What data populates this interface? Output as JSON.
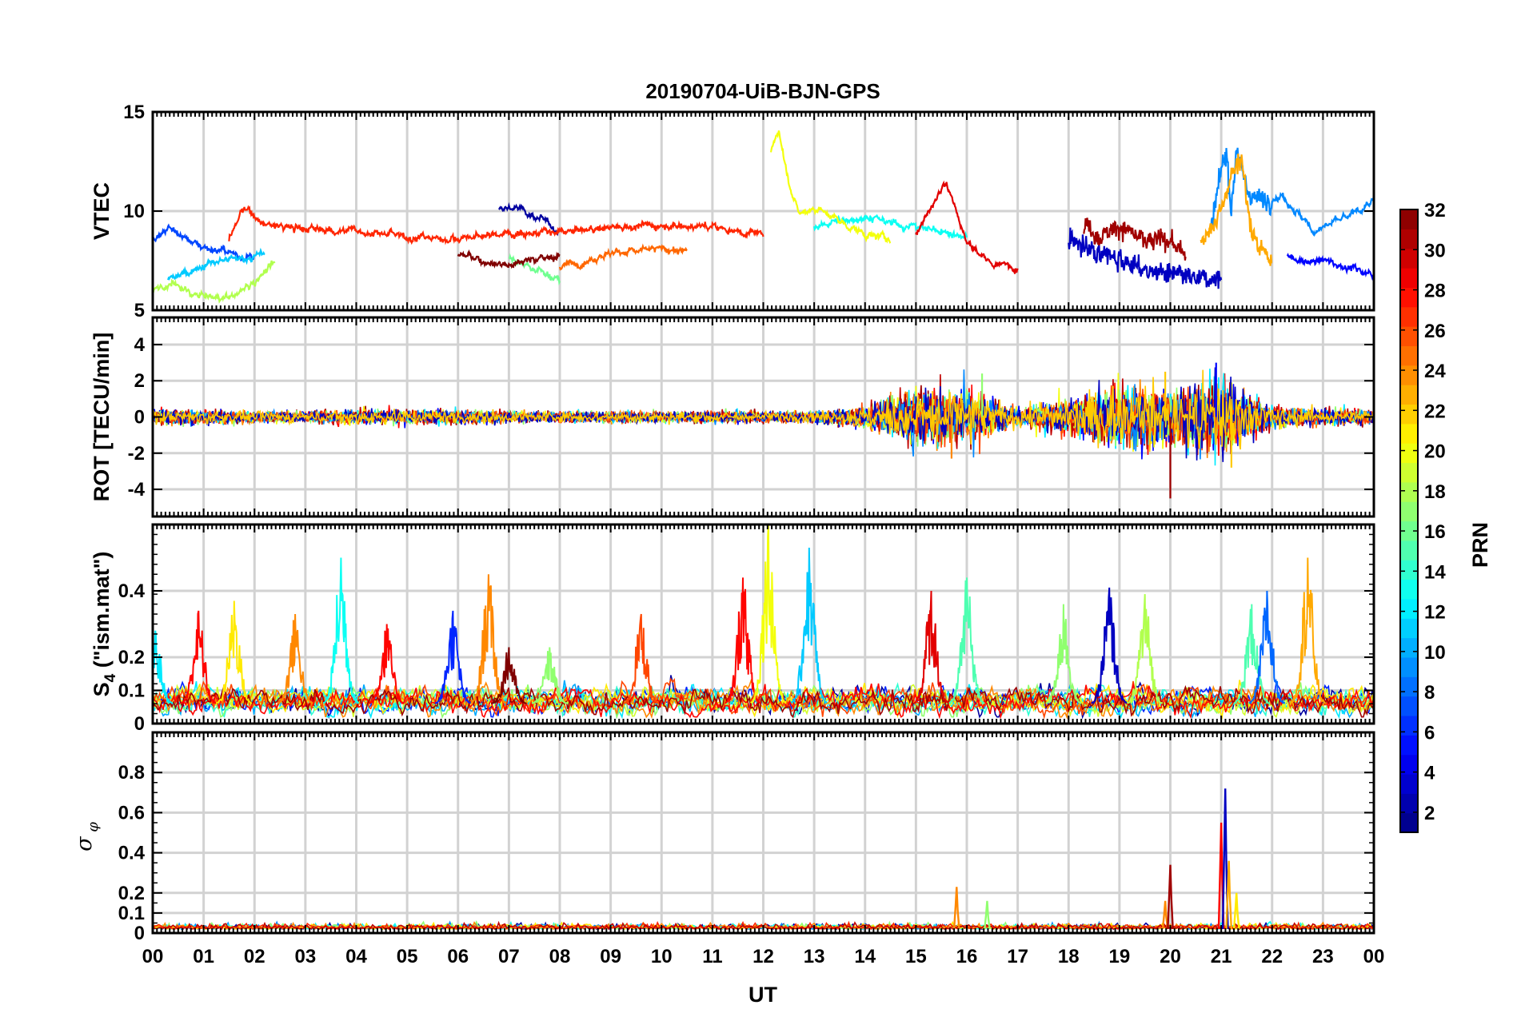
{
  "figure": {
    "title": "20190704-UiB-BJN-GPS",
    "xlabel": "UT",
    "x_tick_labels": [
      "00",
      "01",
      "02",
      "03",
      "04",
      "05",
      "06",
      "07",
      "08",
      "09",
      "10",
      "11",
      "12",
      "13",
      "14",
      "15",
      "16",
      "17",
      "18",
      "19",
      "20",
      "21",
      "22",
      "23",
      "00"
    ]
  },
  "panels": [
    {
      "ylabel": "VTEC",
      "ylim": [
        5,
        15
      ],
      "yticks": [
        5,
        10,
        15
      ],
      "ytick_labels": [
        "5",
        "10",
        "15"
      ],
      "minor_ticks": false
    },
    {
      "ylabel": "ROT [TECU/min]",
      "ylim": [
        -5.5,
        5.5
      ],
      "yticks": [
        -4,
        -2,
        0,
        2,
        4
      ],
      "ytick_labels": [
        "-4",
        "-2",
        "0",
        "2",
        "4"
      ],
      "minor_ticks": false
    },
    {
      "ylabel_main": "S",
      "ylabel_sub": "4",
      "ylabel_rest": " (\"ism.mat\")",
      "ylim": [
        0,
        0.6
      ],
      "yticks": [
        0,
        0.1,
        0.2,
        0.4
      ],
      "ytick_labels": [
        "0",
        "0.1",
        "0.2",
        "0.4"
      ],
      "minor_ticks": true
    },
    {
      "ylabel_main": "σ",
      "ylabel_sub": "φ",
      "ylim": [
        0,
        1
      ],
      "yticks": [
        0,
        0.1,
        0.2,
        0.4,
        0.6,
        0.8
      ],
      "ytick_labels": [
        "0",
        "0.1",
        "0.2",
        "0.4",
        "0.6",
        "0.8"
      ],
      "minor_ticks": true
    }
  ],
  "colorbar": {
    "label": "PRN",
    "range": [
      1,
      32
    ],
    "ticks": [
      2,
      4,
      6,
      8,
      10,
      12,
      14,
      16,
      18,
      20,
      22,
      24,
      26,
      28,
      30,
      32
    ],
    "tick_labels": [
      "2",
      "4",
      "6",
      "8",
      "10",
      "12",
      "14",
      "16",
      "18",
      "20",
      "22",
      "24",
      "26",
      "28",
      "30",
      "32"
    ],
    "colormap": "jet"
  },
  "chart_data": [
    {
      "type": "line",
      "title": "20190704-UiB-BJN-GPS",
      "xlabel": "UT",
      "ylabel": "VTEC",
      "xlim": [
        0,
        24
      ],
      "ylim": [
        5,
        15
      ],
      "grid": true,
      "note_color_key": "PRN (jet colormap 1-32)",
      "series": [
        {
          "prn": 2,
          "x": [
            6.8,
            7.0,
            7.2,
            7.4,
            7.6,
            7.8,
            8.0
          ],
          "y": [
            10.0,
            10.2,
            10.1,
            9.9,
            9.6,
            9.3,
            9.0
          ]
        },
        {
          "prn": 3,
          "x": [
            18.0,
            18.5,
            19.0,
            19.5,
            20.0,
            20.5,
            21.0
          ],
          "y": [
            8.6,
            8.0,
            7.6,
            7.0,
            6.8,
            6.5,
            6.6
          ]
        },
        {
          "prn": 5,
          "x": [
            22.3,
            22.6,
            23.0,
            23.5,
            24.0
          ],
          "y": [
            7.8,
            7.4,
            7.5,
            7.2,
            6.8
          ]
        },
        {
          "prn": 7,
          "x": [
            0.0,
            0.3,
            0.6,
            1.0,
            1.5,
            2.0
          ],
          "y": [
            8.6,
            9.2,
            8.7,
            8.2,
            7.9,
            7.6
          ]
        },
        {
          "prn": 9,
          "x": [
            20.8,
            21.0,
            21.1,
            21.2,
            21.3,
            21.5,
            21.8,
            22.2,
            22.8,
            23.5,
            24.0
          ],
          "y": [
            9.0,
            12.0,
            13.0,
            10.0,
            13.3,
            11.0,
            10.5,
            10.8,
            9.0,
            9.7,
            10.5
          ]
        },
        {
          "prn": 11,
          "x": [
            0.3,
            0.7,
            1.2,
            1.7,
            2.2
          ],
          "y": [
            6.5,
            7.0,
            7.4,
            7.6,
            7.8
          ]
        },
        {
          "prn": 13,
          "x": [
            13.0,
            13.5,
            14.0,
            14.5,
            15.0,
            15.5,
            16.0
          ],
          "y": [
            9.2,
            9.5,
            9.7,
            9.4,
            9.2,
            9.0,
            8.7
          ]
        },
        {
          "prn": 16,
          "x": [
            7.0,
            7.4,
            7.8,
            8.0
          ],
          "y": [
            7.5,
            7.2,
            6.8,
            6.4
          ]
        },
        {
          "prn": 18,
          "x": [
            0.0,
            0.4,
            0.8,
            1.2,
            1.6,
            2.0,
            2.4
          ],
          "y": [
            6.0,
            6.3,
            5.8,
            5.6,
            5.7,
            6.5,
            7.3
          ]
        },
        {
          "prn": 20,
          "x": [
            12.15,
            12.3,
            12.5,
            12.7,
            13.0,
            13.5,
            14.0,
            14.5
          ],
          "y": [
            13.0,
            14.2,
            11.5,
            9.8,
            10.2,
            9.5,
            8.8,
            8.6
          ]
        },
        {
          "prn": 23,
          "x": [
            20.6,
            20.9,
            21.2,
            21.4,
            21.5,
            21.6,
            21.8,
            22.0
          ],
          "y": [
            8.5,
            9.5,
            11.8,
            12.8,
            10.5,
            9.0,
            8.0,
            7.5
          ]
        },
        {
          "prn": 25,
          "x": [
            8.0,
            8.5,
            9.0,
            9.5,
            10.0,
            10.5
          ],
          "y": [
            7.2,
            7.5,
            7.9,
            8.0,
            8.1,
            8.0
          ]
        },
        {
          "prn": 27,
          "x": [
            1.5,
            1.8,
            2.2,
            3.0,
            4.0,
            5.0,
            6.0,
            7.0,
            8.0,
            9.0,
            10.0,
            11.0,
            12.0
          ],
          "y": [
            8.6,
            10.2,
            9.3,
            9.1,
            9.0,
            8.7,
            8.6,
            8.9,
            8.9,
            9.2,
            9.3,
            9.2,
            8.8
          ]
        },
        {
          "prn": 29,
          "x": [
            15.0,
            15.3,
            15.6,
            15.8,
            16.0,
            16.5,
            17.0
          ],
          "y": [
            9.0,
            10.2,
            11.6,
            10.0,
            8.4,
            7.3,
            7.2
          ]
        },
        {
          "prn": 31,
          "x": [
            18.3,
            18.6,
            19.0,
            19.5,
            20.0,
            20.3
          ],
          "y": [
            9.4,
            8.7,
            9.3,
            8.4,
            8.6,
            7.6
          ]
        },
        {
          "prn": 32,
          "x": [
            6.0,
            6.5,
            7.0,
            7.5,
            8.0
          ],
          "y": [
            7.8,
            7.5,
            7.3,
            7.6,
            7.7
          ]
        }
      ]
    },
    {
      "type": "line",
      "xlabel": "UT",
      "ylabel": "ROT [TECU/min]",
      "xlim": [
        0,
        24
      ],
      "ylim": [
        -5.5,
        5.5
      ],
      "grid": true,
      "envelope": {
        "x": [
          0,
          1,
          2,
          3,
          4,
          5,
          6,
          7,
          8,
          9,
          10,
          11,
          12,
          13,
          14,
          15,
          16,
          17,
          18,
          19,
          20,
          21,
          22,
          23,
          24
        ],
        "abs_amplitude": [
          0.4,
          0.4,
          0.3,
          0.3,
          0.4,
          0.4,
          0.4,
          0.3,
          0.3,
          0.3,
          0.3,
          0.3,
          0.3,
          0.3,
          0.6,
          1.5,
          1.6,
          0.5,
          1.0,
          1.8,
          1.4,
          2.2,
          0.6,
          0.4,
          0.4
        ]
      },
      "peaks": [
        {
          "x": 15.7,
          "y": -2.3,
          "prn": 24
        },
        {
          "x": 16.3,
          "y": 2.4,
          "prn": 17
        },
        {
          "x": 20.0,
          "y": -4.5,
          "prn": 31
        },
        {
          "x": 20.9,
          "y": 3.0,
          "prn": 5
        },
        {
          "x": 21.2,
          "y": -2.8,
          "prn": 22
        },
        {
          "x": 19.9,
          "y": 2.5,
          "prn": 22
        }
      ]
    },
    {
      "type": "line",
      "xlabel": "UT",
      "ylabel": "S4 (\"ism.mat\")",
      "xlim": [
        0,
        24
      ],
      "ylim": [
        0,
        0.6
      ],
      "grid": true,
      "baseline": 0.06,
      "peaks": [
        {
          "x": 0.05,
          "y": 0.28,
          "prn": 12
        },
        {
          "x": 0.9,
          "y": 0.34,
          "prn": 28
        },
        {
          "x": 1.6,
          "y": 0.37,
          "prn": 21
        },
        {
          "x": 2.8,
          "y": 0.33,
          "prn": 24
        },
        {
          "x": 3.7,
          "y": 0.5,
          "prn": 13
        },
        {
          "x": 4.6,
          "y": 0.3,
          "prn": 28
        },
        {
          "x": 5.9,
          "y": 0.34,
          "prn": 6
        },
        {
          "x": 6.6,
          "y": 0.45,
          "prn": 24
        },
        {
          "x": 7.0,
          "y": 0.23,
          "prn": 32
        },
        {
          "x": 7.8,
          "y": 0.23,
          "prn": 17
        },
        {
          "x": 9.6,
          "y": 0.33,
          "prn": 26
        },
        {
          "x": 11.6,
          "y": 0.44,
          "prn": 28
        },
        {
          "x": 12.1,
          "y": 0.6,
          "prn": 20
        },
        {
          "x": 12.9,
          "y": 0.53,
          "prn": 11
        },
        {
          "x": 15.3,
          "y": 0.4,
          "prn": 29
        },
        {
          "x": 16.0,
          "y": 0.44,
          "prn": 15
        },
        {
          "x": 17.9,
          "y": 0.36,
          "prn": 17
        },
        {
          "x": 18.8,
          "y": 0.41,
          "prn": 3
        },
        {
          "x": 19.5,
          "y": 0.39,
          "prn": 18
        },
        {
          "x": 21.6,
          "y": 0.36,
          "prn": 15
        },
        {
          "x": 21.9,
          "y": 0.4,
          "prn": 8
        },
        {
          "x": 22.7,
          "y": 0.5,
          "prn": 23
        }
      ]
    },
    {
      "type": "line",
      "xlabel": "UT",
      "ylabel": "σφ",
      "xlim": [
        0,
        24
      ],
      "ylim": [
        0,
        1
      ],
      "grid": true,
      "baseline": 0.02,
      "peaks": [
        {
          "x": 15.8,
          "y": 0.23,
          "prn": 24
        },
        {
          "x": 16.4,
          "y": 0.16,
          "prn": 17
        },
        {
          "x": 19.9,
          "y": 0.16,
          "prn": 24
        },
        {
          "x": 20.0,
          "y": 0.34,
          "prn": 31
        },
        {
          "x": 21.0,
          "y": 0.55,
          "prn": 28
        },
        {
          "x": 21.08,
          "y": 0.72,
          "prn": 3
        },
        {
          "x": 21.15,
          "y": 0.36,
          "prn": 23
        },
        {
          "x": 21.3,
          "y": 0.2,
          "prn": 21
        }
      ]
    }
  ]
}
